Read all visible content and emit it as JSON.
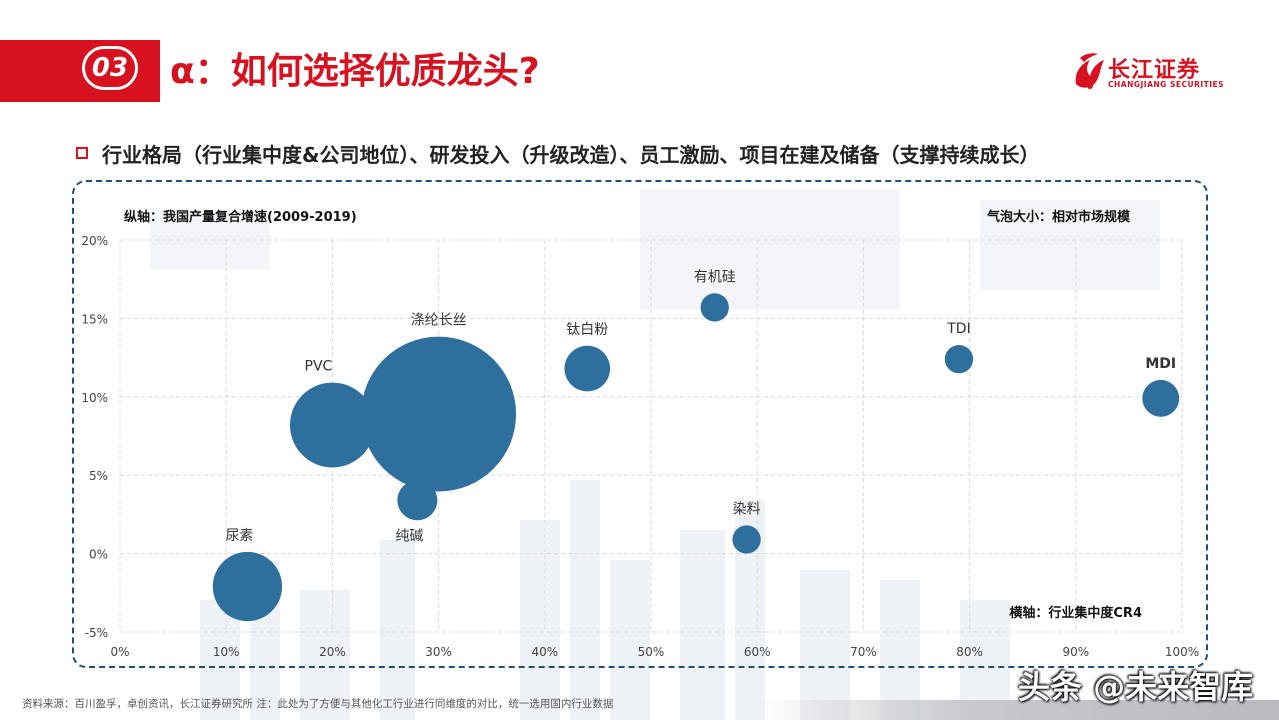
{
  "header": {
    "section_number": "03",
    "title": "α：如何选择优质龙头?",
    "logo_cn": "长江证券",
    "logo_en": "CHANGJIANG SECURITIES"
  },
  "subtitle": "行业格局（行业集中度&公司地位）、研发投入（升级改造）、员工激励、项目在建及储备（支撑持续成长）",
  "footer": {
    "source": "资料来源：百川盈孚，卓创资讯，长江证券研究所   注：此处为了方便与其他化工行业进行同维度的对比，统一选用国内行业数据",
    "watermark": "头条 @未来智库"
  },
  "colors": {
    "accent": "#d7111f",
    "bubble": "#2e6f9e",
    "frame": "#1f4e79"
  },
  "chart_data": {
    "type": "scatter",
    "title": "",
    "ylabel": "纵轴：我国产量复合增速(2009-2019)",
    "xlabel": "横轴：行业集中度CR4",
    "size_label": "气泡大小：相对市场规模",
    "xlim": [
      0,
      1.0
    ],
    "ylim": [
      -0.05,
      0.2
    ],
    "x_ticks": [
      "0%",
      "10%",
      "20%",
      "30%",
      "40%",
      "50%",
      "60%",
      "70%",
      "80%",
      "90%",
      "100%"
    ],
    "y_ticks": [
      "20%",
      "15%",
      "10%",
      "5%",
      "0%",
      "-5%"
    ],
    "grid": true,
    "points": [
      {
        "name": "尿素",
        "x": 0.12,
        "y": -0.021,
        "size": 3.0
      },
      {
        "name": "PVC",
        "x": 0.2,
        "y": 0.082,
        "size": 4.5
      },
      {
        "name": "涤纶长丝",
        "x": 0.3,
        "y": 0.089,
        "size": 15.0
      },
      {
        "name": "纯碱",
        "x": 0.28,
        "y": 0.034,
        "size": 1.0
      },
      {
        "name": "钛白粉",
        "x": 0.44,
        "y": 0.118,
        "size": 1.3
      },
      {
        "name": "有机硅",
        "x": 0.56,
        "y": 0.157,
        "size": 0.5
      },
      {
        "name": "染料",
        "x": 0.59,
        "y": 0.009,
        "size": 0.5
      },
      {
        "name": "TDI",
        "x": 0.79,
        "y": 0.124,
        "size": 0.5
      },
      {
        "name": "MDI",
        "x": 0.98,
        "y": 0.099,
        "size": 0.85
      }
    ]
  }
}
